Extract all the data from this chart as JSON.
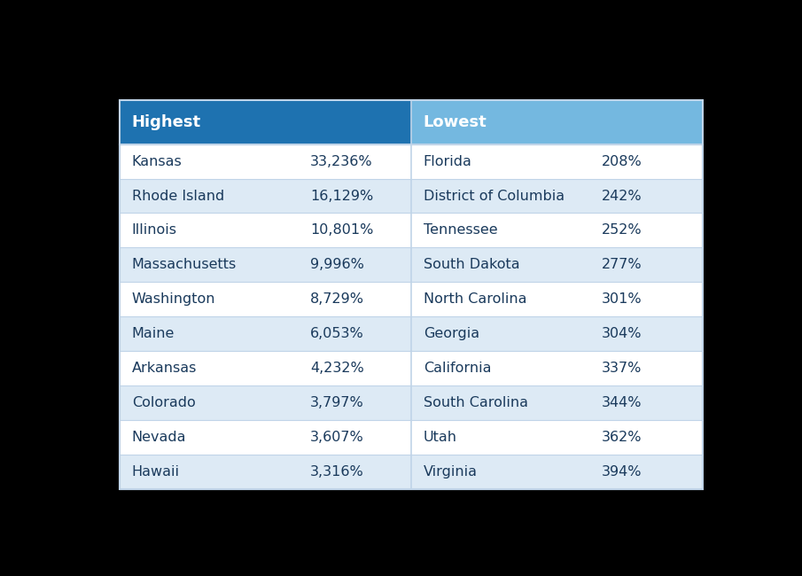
{
  "highest_states": [
    "Kansas",
    "Rhode Island",
    "Illinois",
    "Massachusetts",
    "Washington",
    "Maine",
    "Arkansas",
    "Colorado",
    "Nevada",
    "Hawaii"
  ],
  "highest_values": [
    "33,236%",
    "16,129%",
    "10,801%",
    "9,996%",
    "8,729%",
    "6,053%",
    "4,232%",
    "3,797%",
    "3,607%",
    "3,316%"
  ],
  "lowest_states": [
    "Florida",
    "District of Columbia",
    "Tennessee",
    "South Dakota",
    "North Carolina",
    "Georgia",
    "California",
    "South Carolina",
    "Utah",
    "Virginia"
  ],
  "lowest_values": [
    "208%",
    "242%",
    "252%",
    "277%",
    "301%",
    "304%",
    "337%",
    "344%",
    "362%",
    "394%"
  ],
  "header_left": "Highest",
  "header_right": "Lowest",
  "header_left_color": "#1e72b0",
  "header_right_color": "#74b8e0",
  "row_alt_color": "#ddeaf5",
  "row_white_color": "#ffffff",
  "outer_bg_color": "#000000",
  "text_dark": "#1a3a5c",
  "header_text_color": "#ffffff",
  "font_size_data": 11.5,
  "font_size_header": 13,
  "divider_color": "#c0d4e8"
}
